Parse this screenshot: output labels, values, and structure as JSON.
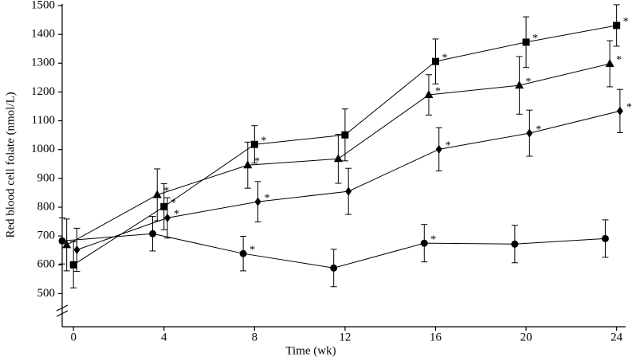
{
  "chart_data": {
    "type": "line",
    "x_label": "Time (wk)",
    "y_label": "Red blood cell folate (nmol/L)",
    "x": [
      0,
      4,
      8,
      12,
      16,
      20,
      24
    ],
    "xlim": [
      -0.5,
      24.4
    ],
    "xticks": [
      0,
      4,
      8,
      12,
      16,
      20,
      24
    ],
    "ylim": [
      385,
      1500
    ],
    "yticks": [
      500,
      600,
      700,
      800,
      900,
      1000,
      1100,
      1200,
      1300,
      1400,
      1500
    ],
    "axis_break": true,
    "grid": false,
    "series": [
      {
        "marker": "square",
        "color": "#000000",
        "values": [
          600,
          802,
          1018,
          1051,
          1306,
          1373,
          1431
        ],
        "errors": [
          80,
          80,
          65,
          90,
          78,
          88,
          72
        ],
        "annotations": [
          null,
          "*",
          "*",
          null,
          "*",
          "*",
          "*"
        ]
      },
      {
        "marker": "triangle",
        "color": "#000000",
        "values": [
          669,
          843,
          946,
          968,
          1190,
          1223,
          1298
        ],
        "errors": [
          90,
          90,
          80,
          85,
          70,
          100,
          80
        ],
        "annotations": [
          null,
          "*",
          "*",
          null,
          "*",
          "*",
          "*"
        ]
      },
      {
        "marker": "diamond",
        "color": "#000000",
        "values": [
          652,
          763,
          819,
          855,
          1001,
          1057,
          1134
        ],
        "errors": [
          75,
          70,
          70,
          80,
          75,
          80,
          75
        ],
        "annotations": [
          null,
          "*",
          "*",
          null,
          "*",
          "*",
          "*"
        ]
      },
      {
        "marker": "circle",
        "color": "#000000",
        "values": [
          683,
          708,
          639,
          589,
          675,
          672,
          691
        ],
        "errors": [
          80,
          60,
          60,
          65,
          65,
          65,
          65
        ],
        "annotations": [
          null,
          null,
          "*",
          null,
          "*",
          null,
          null
        ]
      }
    ]
  }
}
